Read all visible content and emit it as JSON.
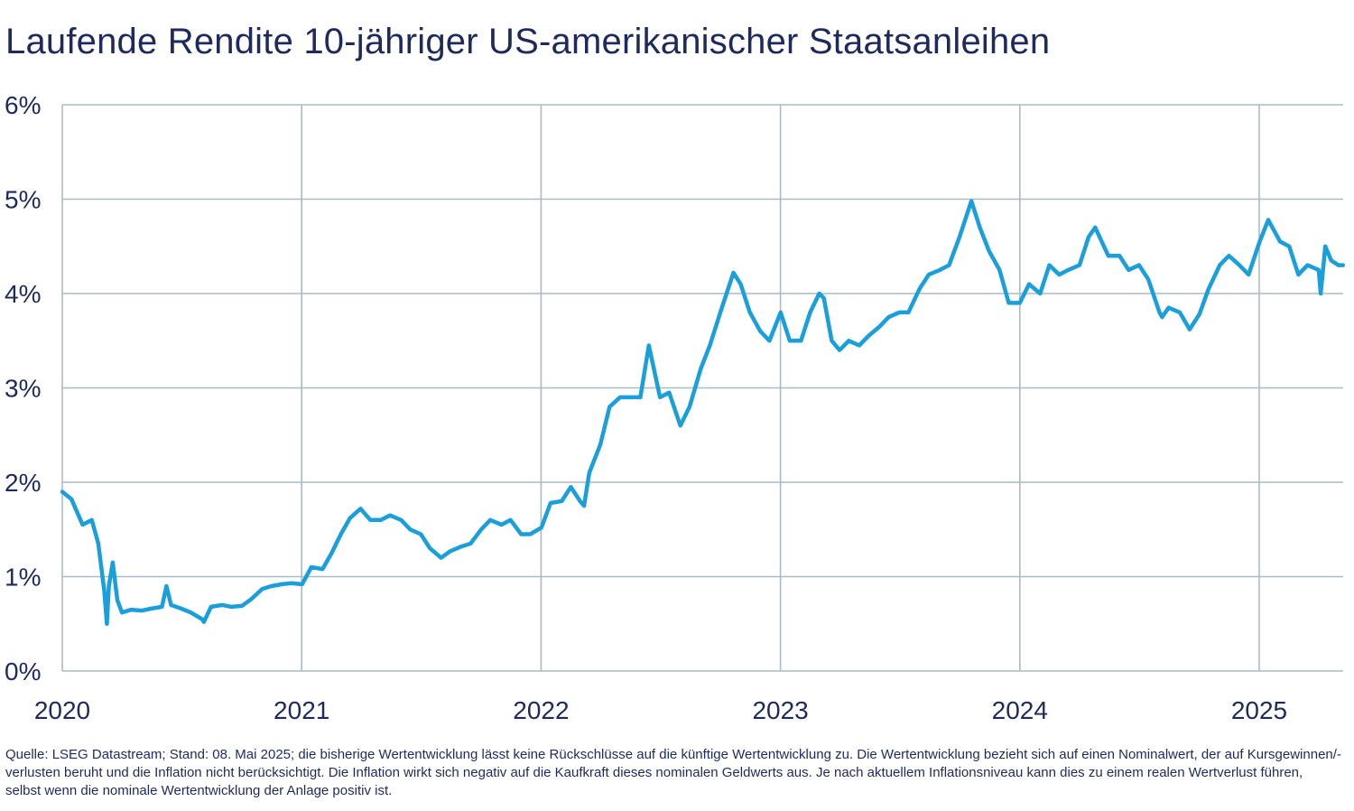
{
  "title": "Laufende Rendite 10-jähriger US-amerikanischer Staatsanleihen",
  "footnote": "Quelle: LSEG Datastream; Stand: 08. Mai 2025; die bisherige Wertentwicklung lässt keine Rückschlüsse auf die künftige Wertentwicklung zu. Die Wertentwicklung bezieht sich auf einen Nominalwert, der auf Kursgewinnen/-verlusten beruht und die Inflation nicht berücksichtigt. Die Inflation wirkt sich negativ auf die Kaufkraft dieses nominalen Geldwerts aus. Je nach aktuellem Inflationsniveau kann dies zu einem realen Wertverlust führen, selbst wenn die nominale Wertentwicklung der Anlage positiv ist.",
  "colors": {
    "line": "#1a9fdb",
    "grid": "#a9bcc6",
    "text": "#1f2a5c"
  },
  "chart_data": {
    "type": "line",
    "title": "Laufende Rendite 10-jähriger US-amerikanischer Staatsanleihen",
    "xlabel": "",
    "ylabel": "",
    "x_ticks": [
      "2020",
      "2021",
      "2022",
      "2023",
      "2024",
      "2025"
    ],
    "y_ticks": [
      "0%",
      "1%",
      "2%",
      "3%",
      "4%",
      "5%",
      "6%"
    ],
    "xlim": [
      "2020-01-01",
      "2025-05-08"
    ],
    "ylim": [
      0,
      6
    ],
    "grid": true,
    "legend": "none",
    "series": [
      {
        "x": [
          "2020-01-01",
          "2020-01-15",
          "2020-02-01",
          "2020-02-15",
          "2020-02-25",
          "2020-03-05",
          "2020-03-09",
          "2020-03-12",
          "2020-03-18",
          "2020-03-25",
          "2020-04-01",
          "2020-04-15",
          "2020-05-01",
          "2020-05-15",
          "2020-06-01",
          "2020-06-08",
          "2020-06-15",
          "2020-07-01",
          "2020-07-15",
          "2020-08-01",
          "2020-08-04",
          "2020-08-15",
          "2020-09-01",
          "2020-09-15",
          "2020-10-01",
          "2020-10-15",
          "2020-11-01",
          "2020-11-15",
          "2020-12-01",
          "2020-12-15",
          "2021-01-01",
          "2021-01-15",
          "2021-02-01",
          "2021-02-15",
          "2021-03-01",
          "2021-03-15",
          "2021-03-31",
          "2021-04-15",
          "2021-05-01",
          "2021-05-15",
          "2021-06-01",
          "2021-06-15",
          "2021-07-01",
          "2021-07-15",
          "2021-08-01",
          "2021-08-15",
          "2021-09-01",
          "2021-09-15",
          "2021-10-01",
          "2021-10-15",
          "2021-11-01",
          "2021-11-15",
          "2021-12-01",
          "2021-12-15",
          "2022-01-01",
          "2022-01-15",
          "2022-02-01",
          "2022-02-15",
          "2022-03-01",
          "2022-03-07",
          "2022-03-15",
          "2022-04-01",
          "2022-04-15",
          "2022-05-01",
          "2022-05-15",
          "2022-06-01",
          "2022-06-14",
          "2022-07-01",
          "2022-07-15",
          "2022-08-01",
          "2022-08-15",
          "2022-09-01",
          "2022-09-15",
          "2022-10-01",
          "2022-10-21",
          "2022-11-01",
          "2022-11-15",
          "2022-12-01",
          "2022-12-15",
          "2023-01-01",
          "2023-01-15",
          "2023-02-01",
          "2023-02-15",
          "2023-03-01",
          "2023-03-08",
          "2023-03-20",
          "2023-04-01",
          "2023-04-15",
          "2023-05-01",
          "2023-05-15",
          "2023-06-01",
          "2023-06-15",
          "2023-07-01",
          "2023-07-15",
          "2023-08-01",
          "2023-08-15",
          "2023-09-01",
          "2023-09-15",
          "2023-10-01",
          "2023-10-19",
          "2023-11-01",
          "2023-11-15",
          "2023-12-01",
          "2023-12-15",
          "2024-01-01",
          "2024-01-15",
          "2024-02-01",
          "2024-02-15",
          "2024-03-01",
          "2024-03-15",
          "2024-04-01",
          "2024-04-15",
          "2024-04-25",
          "2024-05-15",
          "2024-06-01",
          "2024-06-15",
          "2024-07-01",
          "2024-07-15",
          "2024-08-01",
          "2024-08-05",
          "2024-08-15",
          "2024-09-01",
          "2024-09-16",
          "2024-10-01",
          "2024-10-15",
          "2024-11-01",
          "2024-11-15",
          "2024-12-01",
          "2024-12-15",
          "2025-01-01",
          "2025-01-14",
          "2025-02-01",
          "2025-02-15",
          "2025-03-01",
          "2025-03-15",
          "2025-04-01",
          "2025-04-04",
          "2025-04-11",
          "2025-04-20",
          "2025-05-01",
          "2025-05-08"
        ],
        "values": [
          1.9,
          1.82,
          1.55,
          1.6,
          1.35,
          0.85,
          0.5,
          0.9,
          1.15,
          0.75,
          0.62,
          0.65,
          0.64,
          0.66,
          0.68,
          0.9,
          0.7,
          0.66,
          0.62,
          0.55,
          0.52,
          0.68,
          0.7,
          0.68,
          0.69,
          0.76,
          0.87,
          0.9,
          0.92,
          0.93,
          0.92,
          1.1,
          1.08,
          1.25,
          1.45,
          1.62,
          1.72,
          1.6,
          1.6,
          1.65,
          1.6,
          1.5,
          1.45,
          1.3,
          1.2,
          1.27,
          1.32,
          1.35,
          1.5,
          1.6,
          1.55,
          1.6,
          1.45,
          1.45,
          1.52,
          1.78,
          1.8,
          1.95,
          1.8,
          1.75,
          2.1,
          2.4,
          2.8,
          2.9,
          2.9,
          2.9,
          3.45,
          2.9,
          2.95,
          2.6,
          2.8,
          3.2,
          3.45,
          3.8,
          4.22,
          4.1,
          3.8,
          3.6,
          3.5,
          3.8,
          3.5,
          3.5,
          3.8,
          4.0,
          3.95,
          3.5,
          3.4,
          3.5,
          3.45,
          3.55,
          3.65,
          3.75,
          3.8,
          3.8,
          4.05,
          4.2,
          4.25,
          4.3,
          4.6,
          4.98,
          4.7,
          4.45,
          4.25,
          3.9,
          3.9,
          4.1,
          4.0,
          4.3,
          4.2,
          4.25,
          4.3,
          4.6,
          4.7,
          4.4,
          4.4,
          4.25,
          4.3,
          4.15,
          3.8,
          3.75,
          3.85,
          3.8,
          3.62,
          3.78,
          4.05,
          4.3,
          4.4,
          4.3,
          4.2,
          4.55,
          4.78,
          4.55,
          4.5,
          4.2,
          4.3,
          4.25,
          4.0,
          4.5,
          4.35,
          4.3,
          4.3
        ]
      }
    ]
  }
}
